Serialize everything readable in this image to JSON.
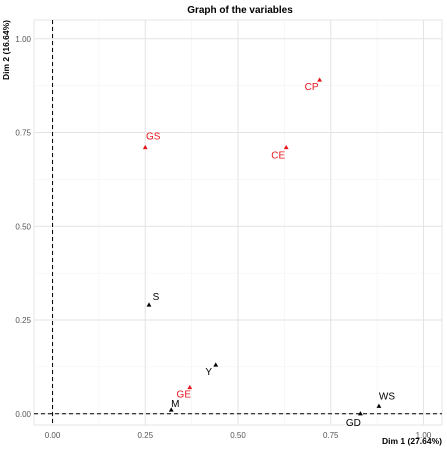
{
  "chart_data": {
    "type": "scatter",
    "title": "Graph of the variables",
    "xlabel": "Dim 1 (27.64%)",
    "ylabel": "Dim 2 (16.64%)",
    "xlim": [
      -0.05,
      1.05
    ],
    "ylim": [
      -0.03,
      1.05
    ],
    "xticks": [
      "0.00",
      "0.25",
      "0.50",
      "0.75",
      "1.00"
    ],
    "yticks": [
      "0.00",
      "0.25",
      "0.50",
      "0.75",
      "1.00"
    ],
    "grid": true,
    "reference_lines": {
      "x": 0,
      "y": 0,
      "style": "dashed"
    },
    "colors": {
      "supplementary": "#e8141b",
      "active": "#000000"
    },
    "points": [
      {
        "label": "CP",
        "x": 0.72,
        "y": 0.89,
        "color": "#e8141b"
      },
      {
        "label": "GS",
        "x": 0.25,
        "y": 0.71,
        "color": "#e8141b"
      },
      {
        "label": "CE",
        "x": 0.63,
        "y": 0.71,
        "color": "#e8141b"
      },
      {
        "label": "S",
        "x": 0.26,
        "y": 0.29,
        "color": "#000000"
      },
      {
        "label": "Y",
        "x": 0.44,
        "y": 0.13,
        "color": "#000000"
      },
      {
        "label": "GE",
        "x": 0.37,
        "y": 0.07,
        "color": "#e8141b"
      },
      {
        "label": "M",
        "x": 0.32,
        "y": 0.01,
        "color": "#000000"
      },
      {
        "label": "WS",
        "x": 0.88,
        "y": 0.02,
        "color": "#000000"
      },
      {
        "label": "GD",
        "x": 0.83,
        "y": 0.0,
        "color": "#000000"
      }
    ]
  }
}
